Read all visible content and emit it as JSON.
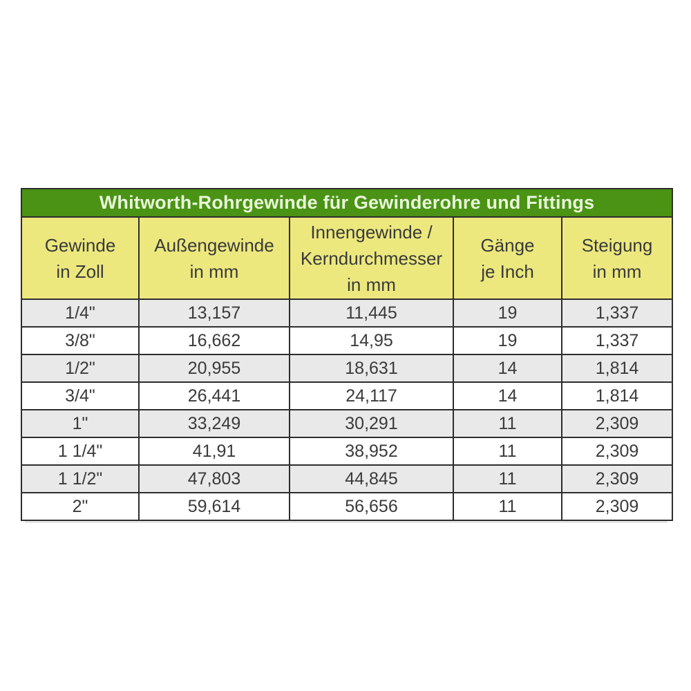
{
  "table": {
    "title": "Whitworth-Rohrgewinde für Gewinderohre und Fittings",
    "headers": [
      "Gewinde\nin Zoll",
      "Außengewinde\nin mm",
      "Innengewinde /\nKerndurchmesser\nin mm",
      "Gänge\nje Inch",
      "Steigung\nin mm"
    ]
  },
  "chart_data": {
    "type": "table",
    "title": "Whitworth-Rohrgewinde für Gewinderohre und Fittings",
    "columns": [
      "Gewinde in Zoll",
      "Außengewinde in mm",
      "Innengewinde / Kerndurchmesser in mm",
      "Gänge je Inch",
      "Steigung in mm"
    ],
    "rows": [
      [
        "1/4\"",
        "13,157",
        "11,445",
        "19",
        "1,337"
      ],
      [
        "3/8\"",
        "16,662",
        "14,95",
        "19",
        "1,337"
      ],
      [
        "1/2\"",
        "20,955",
        "18,631",
        "14",
        "1,814"
      ],
      [
        "3/4\"",
        "26,441",
        "24,117",
        "14",
        "1,814"
      ],
      [
        "1\"",
        "33,249",
        "30,291",
        "11",
        "2,309"
      ],
      [
        "1 1/4\"",
        "41,91",
        "38,952",
        "11",
        "2,309"
      ],
      [
        "1 1/2\"",
        "47,803",
        "44,845",
        "11",
        "2,309"
      ],
      [
        "2\"",
        "59,614",
        "56,656",
        "11",
        "2,309"
      ]
    ],
    "layout": {
      "row_striping": "odd-rows-gray",
      "header_position": "top"
    }
  },
  "colors": {
    "title_bg": "#4a9315",
    "title_text": "#e9f6da",
    "header_bg": "#ece87e",
    "row_alt_bg": "#e9e9e9",
    "row_bg": "#ffffff",
    "border": "#2d2d2d",
    "text": "#3a3a3a"
  }
}
